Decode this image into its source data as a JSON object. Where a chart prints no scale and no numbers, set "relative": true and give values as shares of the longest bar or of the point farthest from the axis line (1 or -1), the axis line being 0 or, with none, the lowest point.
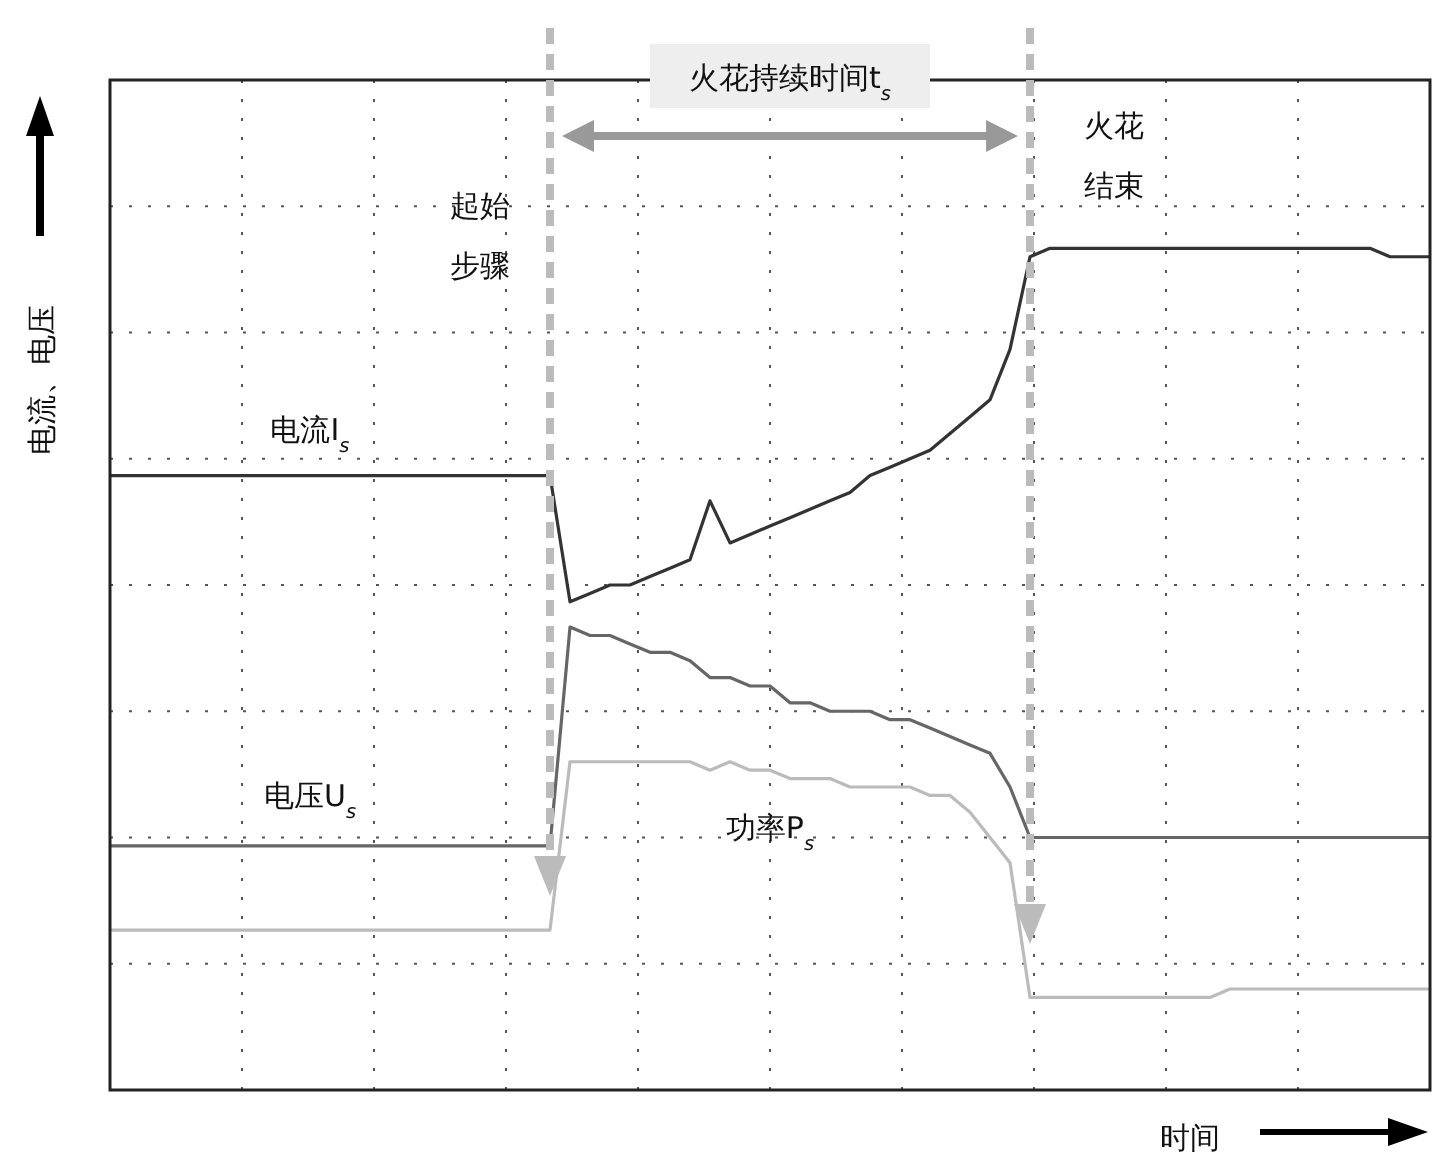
{
  "chart_data": {
    "type": "line",
    "relative": true,
    "xlabel": "时间",
    "ylabel": "电流、电压",
    "grid": true,
    "marker": "none",
    "line_style": "solid",
    "categories": [
      null,
      null,
      null,
      null,
      null,
      null,
      null,
      null,
      null,
      null,
      null,
      null,
      null,
      null,
      null,
      null,
      null,
      null,
      null,
      null,
      null,
      null,
      null,
      null,
      null,
      null,
      null,
      null,
      null,
      null,
      null,
      null,
      null,
      null,
      null,
      null,
      null,
      null,
      null,
      null,
      null,
      null,
      null,
      null,
      null,
      null,
      null,
      null,
      null,
      null,
      null,
      null,
      null,
      null,
      null,
      null,
      null,
      null,
      null,
      null,
      null,
      null,
      null,
      null,
      null,
      null,
      null
    ],
    "series": [
      {
        "name": "电流I$_{s}$",
        "color": "#333333",
        "values": [
          0.73,
          0.73,
          0.73,
          0.73,
          0.73,
          0.73,
          0.73,
          0.73,
          0.73,
          0.73,
          0.73,
          0.73,
          0.73,
          0.73,
          0.73,
          0.73,
          0.73,
          0.73,
          0.73,
          0.73,
          0.73,
          0.73,
          0.73,
          0.58,
          0.59,
          0.6,
          0.6,
          0.61,
          0.62,
          0.63,
          0.7,
          0.65,
          0.66,
          0.67,
          0.68,
          0.69,
          0.7,
          0.71,
          0.73,
          0.74,
          0.75,
          0.76,
          0.78,
          0.8,
          0.82,
          0.88,
          0.99,
          1,
          1,
          1,
          1,
          1,
          1,
          1,
          1,
          1,
          1,
          1,
          1,
          1,
          1,
          1,
          1,
          1,
          0.99,
          0.99,
          0.99
        ]
      },
      {
        "name": "电压U$_{s}$",
        "color": "#666666",
        "values": [
          0.29,
          0.29,
          0.29,
          0.29,
          0.29,
          0.29,
          0.29,
          0.29,
          0.29,
          0.29,
          0.29,
          0.29,
          0.29,
          0.29,
          0.29,
          0.29,
          0.29,
          0.29,
          0.29,
          0.29,
          0.29,
          0.29,
          0.29,
          0.55,
          0.54,
          0.54,
          0.53,
          0.52,
          0.52,
          0.51,
          0.49,
          0.49,
          0.48,
          0.48,
          0.46,
          0.46,
          0.45,
          0.45,
          0.45,
          0.44,
          0.44,
          0.43,
          0.42,
          0.41,
          0.4,
          0.36,
          0.3,
          0.3,
          0.3,
          0.3,
          0.3,
          0.3,
          0.3,
          0.3,
          0.3,
          0.3,
          0.3,
          0.3,
          0.3,
          0.3,
          0.3,
          0.3,
          0.3,
          0.3,
          0.3,
          0.3,
          0.3
        ]
      },
      {
        "name": "功率P$_{s}$",
        "color": "#bbbbbb",
        "values": [
          0.19,
          0.19,
          0.19,
          0.19,
          0.19,
          0.19,
          0.19,
          0.19,
          0.19,
          0.19,
          0.19,
          0.19,
          0.19,
          0.19,
          0.19,
          0.19,
          0.19,
          0.19,
          0.19,
          0.19,
          0.19,
          0.19,
          0.19,
          0.39,
          0.39,
          0.39,
          0.39,
          0.39,
          0.39,
          0.39,
          0.38,
          0.39,
          0.38,
          0.38,
          0.37,
          0.37,
          0.37,
          0.36,
          0.36,
          0.36,
          0.36,
          0.35,
          0.35,
          0.33,
          0.3,
          0.27,
          0.11,
          0.11,
          0.11,
          0.11,
          0.11,
          0.11,
          0.11,
          0.11,
          0.11,
          0.11,
          0.12,
          0.12,
          0.12,
          0.12,
          0.12,
          0.12,
          0.12,
          0.12,
          0.12,
          0.12,
          0.12
        ]
      }
    ],
    "annotations": [
      "火花持续时间t$_{s}$",
      "起始步骤",
      "火花结束"
    ]
  }
}
